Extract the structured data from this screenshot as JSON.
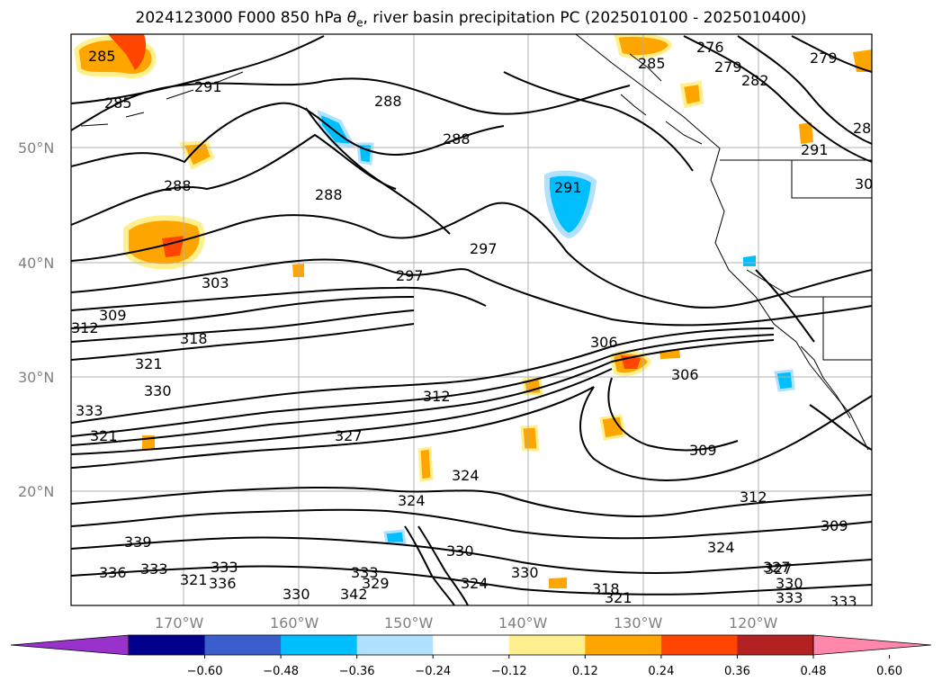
{
  "title": {
    "run": "2024123000 F000 850 hPa",
    "symbol": "θ",
    "subscript": "e",
    "rest": ", river basin precipitation PC (2025010100 - 2025010400)"
  },
  "map": {
    "longitude_labels": [
      "170°W",
      "160°W",
      "150°W",
      "140°W",
      "130°W",
      "120°W"
    ],
    "latitude_labels": [
      "50°N",
      "40°N",
      "30°N",
      "20°N"
    ],
    "contour_labels": [
      "285",
      "291",
      "288",
      "285",
      "288",
      "288",
      "291",
      "288",
      "276",
      "279",
      "282",
      "285",
      "279",
      "28",
      "291",
      "30",
      "297",
      "297",
      "303",
      "309",
      "312",
      "318",
      "321",
      "330",
      "333",
      "321",
      "306",
      "306",
      "312",
      "327",
      "309",
      "312",
      "309",
      "324",
      "339",
      "336",
      "333",
      "336",
      "333",
      "327",
      "324",
      "324",
      "321",
      "333",
      "330",
      "342",
      "329",
      "330",
      "324",
      "330",
      "318",
      "321",
      "327",
      "330",
      "333",
      "333"
    ]
  },
  "colorbar": {
    "colors": [
      "#9932cc",
      "#00008b",
      "#3a5fcd",
      "#00bfff",
      "#b0e2ff",
      "#ffffff",
      "#fff08f",
      "#ffa500",
      "#ff4500",
      "#b22222",
      "#ff88aa"
    ],
    "tick_labels": [
      "−0.60",
      "−0.48",
      "−0.36",
      "−0.24",
      "−0.12",
      "0.12",
      "0.24",
      "0.36",
      "0.48",
      "0.60"
    ]
  }
}
